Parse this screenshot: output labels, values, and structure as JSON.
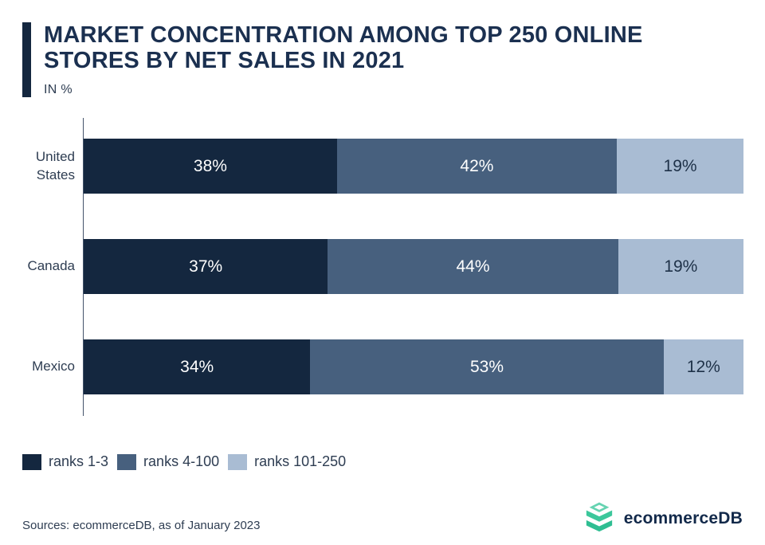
{
  "header": {
    "title": "MARKET CONCENTRATION AMONG TOP 250 ONLINE STORES BY NET SALES IN 2021",
    "subtitle": "IN %"
  },
  "chart_data": {
    "type": "bar",
    "orientation": "horizontal",
    "stacked": true,
    "title": "MARKET CONCENTRATION AMONG TOP 250 ONLINE STORES BY NET SALES IN 2021",
    "subtitle": "IN %",
    "unit": "%",
    "value_suffix": "%",
    "xlim": [
      0,
      100
    ],
    "grid": false,
    "legend_position": "bottom-left",
    "categories": [
      "United States",
      "Canada",
      "Mexico"
    ],
    "series": [
      {
        "name": "ranks 1-3",
        "color": "#14273F",
        "label_color": "#FFFFFF",
        "values": [
          38,
          37,
          34
        ]
      },
      {
        "name": "ranks 4-100",
        "color": "#47607E",
        "label_color": "#FFFFFF",
        "values": [
          42,
          44,
          53
        ]
      },
      {
        "name": "ranks 101-250",
        "color": "#A9BCD3",
        "label_color": "#1E3148",
        "values": [
          19,
          19,
          12
        ]
      }
    ]
  },
  "footer": {
    "source": "Sources: ecommerceDB, as of January 2023",
    "logo_text": "ecommerceDB",
    "logo_colors": {
      "top": "#65D3B1",
      "middle": "#3CC79B",
      "bottom": "#2FBE92",
      "notch": "#FFFFFF"
    }
  },
  "style": {
    "accent_color": "#14273F",
    "title_color": "#1B3050",
    "text_color": "#2E3D52",
    "axis_color": "#44536A",
    "background": "#FFFFFF"
  }
}
